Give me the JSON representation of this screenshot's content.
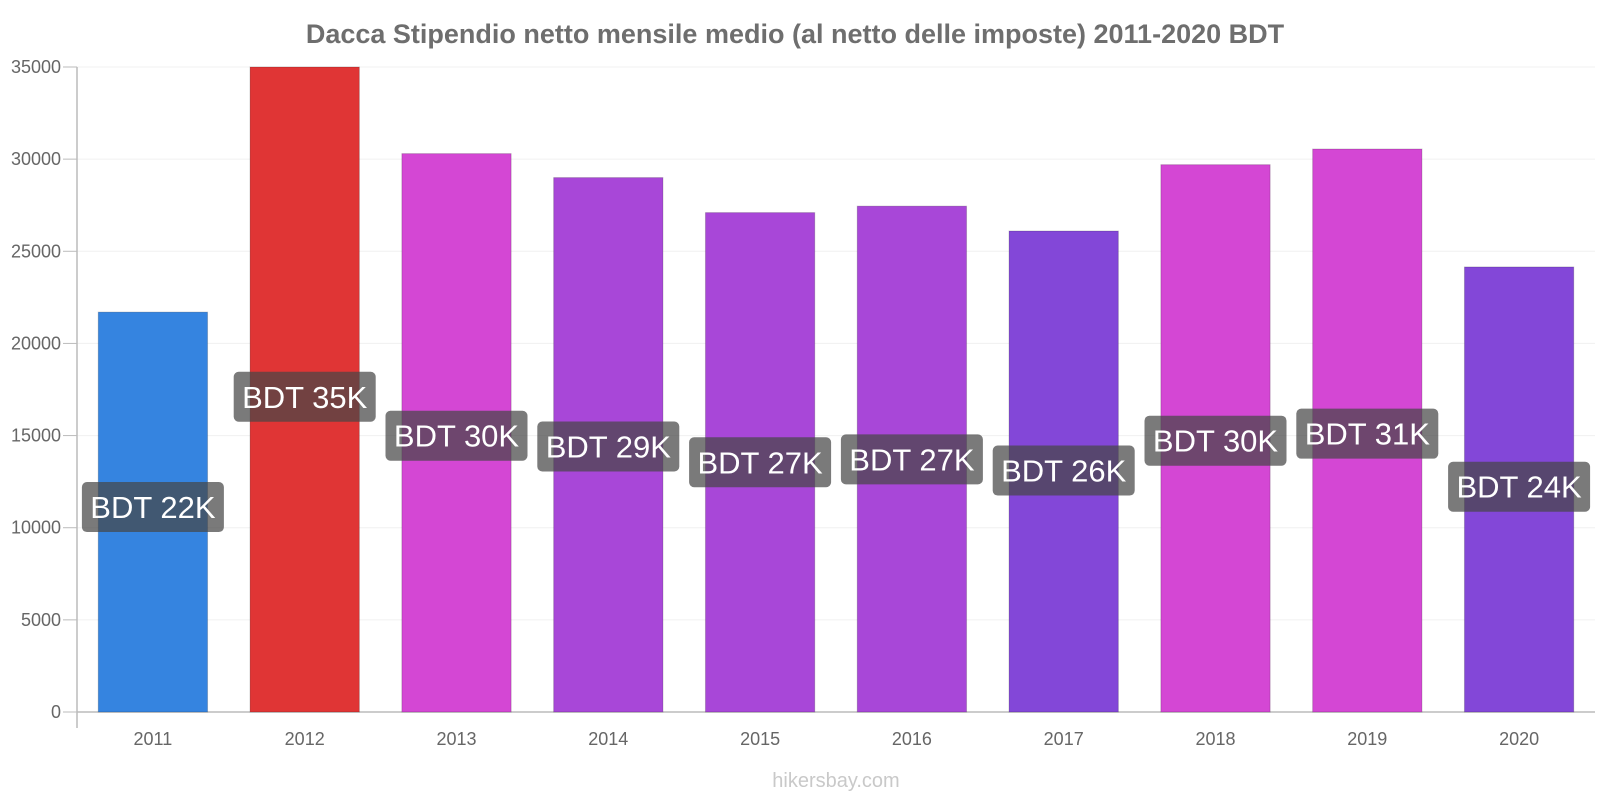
{
  "chart_data": {
    "type": "bar",
    "title": "Dacca Stipendio netto mensile medio (al netto delle imposte) 2011-2020 BDT",
    "categories": [
      "2011",
      "2012",
      "2013",
      "2014",
      "2015",
      "2016",
      "2017",
      "2018",
      "2019",
      "2020"
    ],
    "values": [
      21700,
      35000,
      30300,
      29000,
      27100,
      27450,
      26100,
      29700,
      30550,
      24150
    ],
    "data_labels": [
      "BDT 22K",
      "BDT 35K",
      "BDT 30K",
      "BDT 29K",
      "BDT 27K",
      "BDT 27K",
      "BDT 26K",
      "BDT 30K",
      "BDT 31K",
      "BDT 24K"
    ],
    "bar_colors": [
      "#3584e0",
      "#e03535",
      "#d447d4",
      "#a847d8",
      "#a847d8",
      "#a847d8",
      "#8347d8",
      "#d447d4",
      "#d447d4",
      "#8347d8"
    ],
    "yticks": [
      0,
      5000,
      10000,
      15000,
      20000,
      25000,
      30000,
      35000
    ],
    "ylim": [
      0,
      35000
    ],
    "xlabel": "",
    "ylabel": "",
    "grid": true,
    "legend": "none"
  },
  "watermark": "hikersbay.com"
}
